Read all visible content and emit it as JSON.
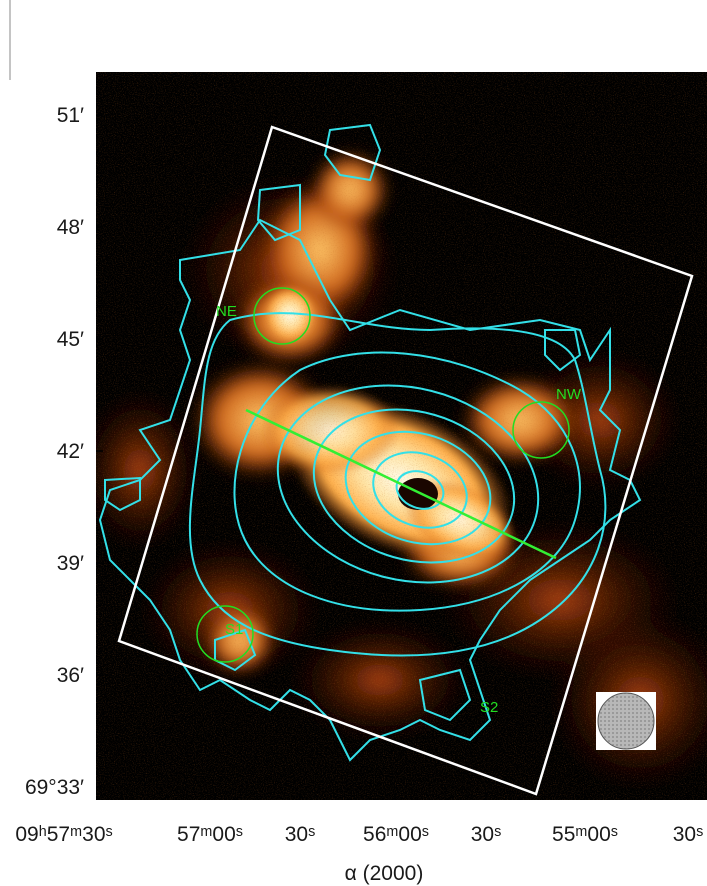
{
  "figure": {
    "xaxis": {
      "title": "α (2000)",
      "ticks": [
        {
          "label": "09ʰ57ᵐ30ˢ"
        },
        {
          "label": "57ᵐ00ˢ"
        },
        {
          "label": "30ˢ"
        },
        {
          "label": "56ᵐ00ˢ"
        },
        {
          "label": "30ˢ"
        },
        {
          "label": "55ᵐ00ˢ"
        },
        {
          "label": "30ˢ"
        }
      ]
    },
    "yaxis": {
      "ticks": [
        {
          "label": "51′"
        },
        {
          "label": "48′"
        },
        {
          "label": "45′"
        },
        {
          "label": "42′"
        },
        {
          "label": "39′"
        },
        {
          "label": "36′"
        },
        {
          "label": "69°33′"
        }
      ]
    },
    "regions": [
      {
        "label": "NE"
      },
      {
        "label": "NW"
      },
      {
        "label": "S1"
      },
      {
        "label": "S2"
      }
    ],
    "colors": {
      "background": "#000000",
      "contours": "#33e0e8",
      "regions": "#22dd22",
      "slit": "#33ee33",
      "field_box": "#ffffff",
      "beam": "#bdbdbd",
      "emission": [
        "#3a0a00",
        "#8a2a05",
        "#d06515",
        "#ffb050",
        "#fff2c8"
      ]
    },
    "icons": [
      "beam-ellipse-icon"
    ]
  }
}
